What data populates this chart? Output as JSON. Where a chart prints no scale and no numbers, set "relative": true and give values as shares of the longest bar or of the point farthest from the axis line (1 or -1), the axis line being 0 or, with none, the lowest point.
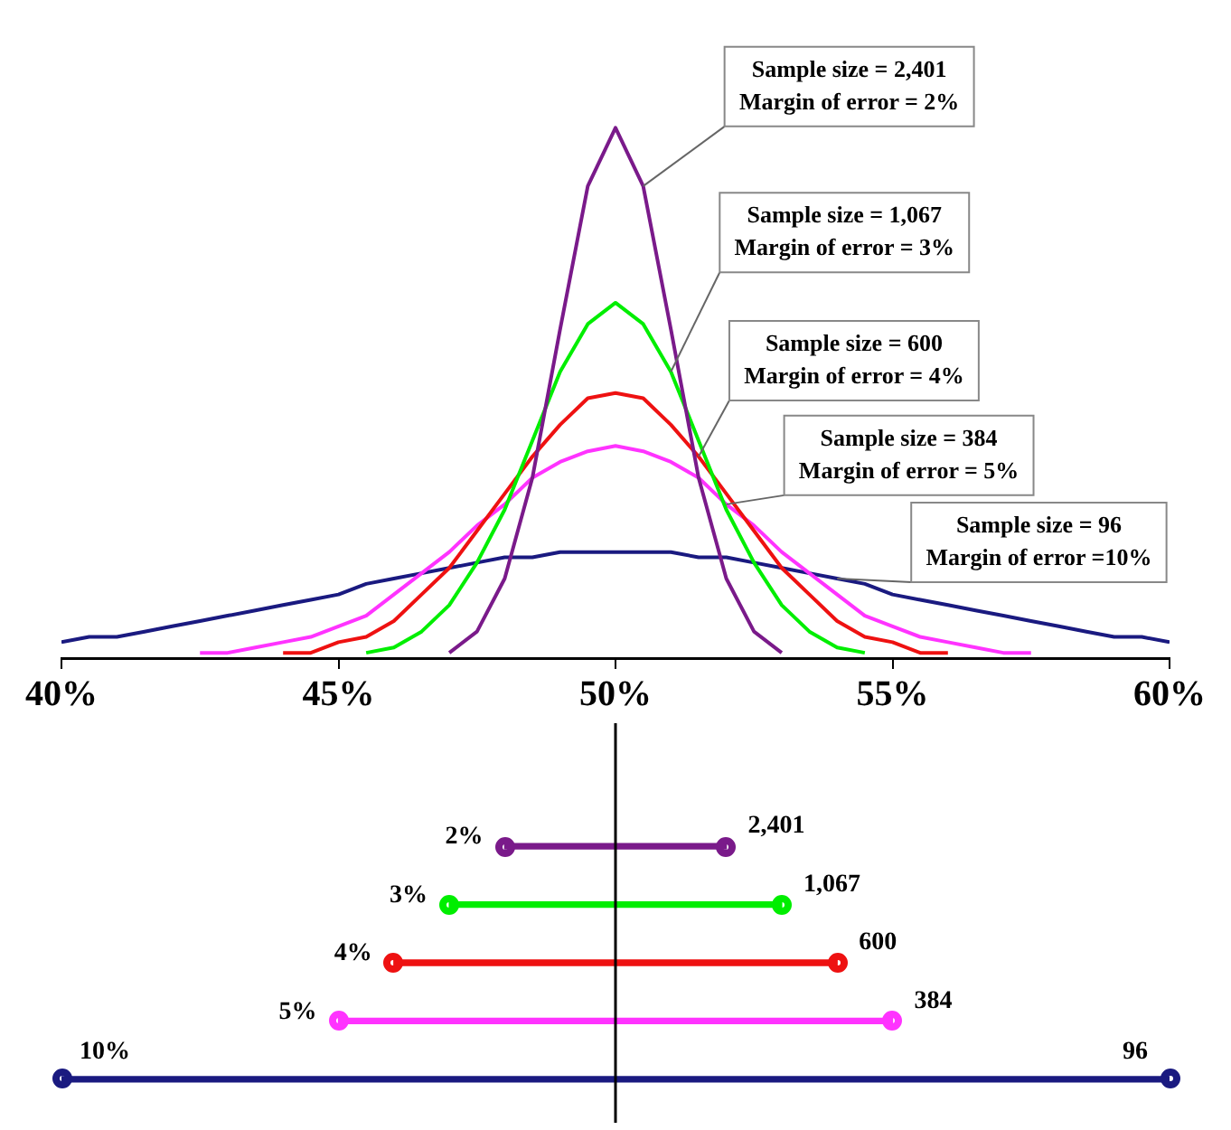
{
  "chart_data": [
    {
      "type": "line",
      "relative": true,
      "x": [
        40,
        40.5,
        41,
        41.5,
        42,
        42.5,
        43,
        43.5,
        44,
        44.5,
        45,
        45.5,
        46,
        46.5,
        47,
        47.5,
        48,
        48.5,
        49,
        49.5,
        50,
        50.5,
        51,
        51.5,
        52,
        52.5,
        53,
        53.5,
        54,
        54.5,
        55,
        55.5,
        56,
        56.5,
        57,
        57.5,
        58,
        58.5,
        59,
        59.5,
        60
      ],
      "xlim": [
        40,
        60
      ],
      "xticks": [
        {
          "value": 40,
          "label": "40%"
        },
        {
          "value": 45,
          "label": "45%"
        },
        {
          "value": 50,
          "label": "50%"
        },
        {
          "value": 55,
          "label": "55%"
        },
        {
          "value": 60,
          "label": "60%"
        }
      ],
      "series": [
        {
          "color": "#7a1a8a",
          "values": [
            null,
            null,
            null,
            null,
            null,
            null,
            null,
            null,
            null,
            null,
            null,
            null,
            null,
            null,
            0.01,
            0.05,
            0.15,
            0.34,
            0.62,
            0.89,
            1,
            0.89,
            0.62,
            0.34,
            0.15,
            0.05,
            0.01,
            null,
            null,
            null,
            null,
            null,
            null,
            null,
            null,
            null,
            null,
            null,
            null,
            null,
            null
          ]
        },
        {
          "color": "#00ee00",
          "values": [
            null,
            null,
            null,
            null,
            null,
            null,
            null,
            null,
            null,
            null,
            null,
            0.01,
            0.02,
            0.05,
            0.1,
            0.18,
            0.28,
            0.41,
            0.54,
            0.63,
            0.67,
            0.63,
            0.54,
            0.41,
            0.28,
            0.18,
            0.1,
            0.05,
            0.02,
            0.01,
            null,
            null,
            null,
            null,
            null,
            null,
            null,
            null,
            null,
            null,
            null
          ]
        },
        {
          "color": "#ee1111",
          "values": [
            null,
            null,
            null,
            null,
            null,
            null,
            null,
            null,
            0.01,
            0.01,
            0.03,
            0.04,
            0.07,
            0.12,
            0.17,
            0.24,
            0.31,
            0.38,
            0.44,
            0.49,
            0.5,
            0.49,
            0.44,
            0.38,
            0.31,
            0.24,
            0.17,
            0.12,
            0.07,
            0.04,
            0.03,
            0.01,
            0.01,
            null,
            null,
            null,
            null,
            null,
            null,
            null,
            null
          ]
        },
        {
          "color": "#ff33ff",
          "values": [
            null,
            null,
            null,
            null,
            null,
            0.01,
            0.01,
            0.02,
            0.03,
            0.04,
            0.06,
            0.08,
            0.12,
            0.16,
            0.2,
            0.25,
            0.29,
            0.34,
            0.37,
            0.39,
            0.4,
            0.39,
            0.37,
            0.34,
            0.29,
            0.25,
            0.2,
            0.16,
            0.12,
            0.08,
            0.06,
            0.04,
            0.03,
            0.02,
            0.01,
            0.01,
            null,
            null,
            null,
            null,
            null
          ]
        },
        {
          "color": "#1a1a80",
          "values": [
            0.03,
            0.04,
            0.04,
            0.05,
            0.06,
            0.07,
            0.08,
            0.09,
            0.1,
            0.11,
            0.12,
            0.14,
            0.15,
            0.16,
            0.17,
            0.18,
            0.19,
            0.19,
            0.2,
            0.2,
            0.2,
            0.2,
            0.2,
            0.19,
            0.19,
            0.18,
            0.17,
            0.16,
            0.15,
            0.14,
            0.12,
            0.11,
            0.1,
            0.09,
            0.08,
            0.07,
            0.06,
            0.05,
            0.04,
            0.04,
            0.03
          ]
        }
      ],
      "annotations": [
        {
          "text": "Sample size = 2,401\nMargin of error = 2%",
          "x": 50.5,
          "y": 0.89
        },
        {
          "text": "Sample size = 1,067\nMargin of error = 3%",
          "x": 51,
          "y": 0.54
        },
        {
          "text": "Sample size = 600\nMargin of error = 4%",
          "x": 51.5,
          "y": 0.38
        },
        {
          "text": "Sample size = 384\nMargin of error = 5%",
          "x": 52,
          "y": 0.29
        },
        {
          "text": "Sample size = 96\nMargin of error =10%",
          "x": 54,
          "y": 0.15
        }
      ]
    },
    {
      "type": "bar",
      "orientation": "horizontal",
      "categories": [
        null,
        null,
        null,
        null,
        null
      ],
      "base": [
        48,
        47,
        46,
        45,
        40
      ],
      "values": [
        4,
        6,
        8,
        10,
        20
      ],
      "colors": [
        "#7a1a8a",
        "#00ee00",
        "#ee1111",
        "#ff33ff",
        "#1a1a80"
      ],
      "marker": "circle",
      "xlim": [
        40,
        60
      ],
      "tick_labels": false,
      "annotations": [
        "2%",
        "3%",
        "4%",
        "5%",
        "10%",
        "2,401",
        "1,067",
        "600",
        "384",
        "96"
      ],
      "ref_lines": [
        {
          "axis": "x",
          "value": 50,
          "color": "#000000"
        }
      ]
    }
  ]
}
